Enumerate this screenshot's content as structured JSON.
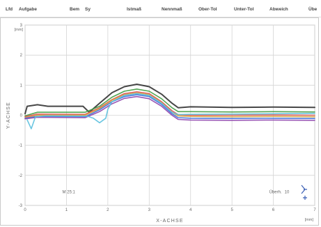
{
  "header": {
    "columns": [
      "Lfd",
      "Aufgabe",
      "Bem",
      "Sy",
      "Istmaß",
      "Nennmaß",
      "Ober-Tol",
      "Unter-Tol",
      "Abweich",
      "Übe"
    ]
  },
  "chart_data": {
    "type": "line",
    "xlabel": "X-ACHSE",
    "ylabel": "Y-ACHSE",
    "x_unit": "[mm]",
    "y_unit": "[mm]",
    "xlim": [
      0,
      7
    ],
    "ylim": [
      -3,
      3
    ],
    "x_ticks": [
      "0",
      "1",
      "2",
      "3",
      "4",
      "5",
      "6",
      "7"
    ],
    "y_ticks": [
      "-3",
      "-2",
      "-1",
      "0",
      "1",
      "2",
      "3"
    ],
    "scale_label": "M 25:1",
    "exaggeration_label": "Überh.",
    "exaggeration_value": "10",
    "series": [
      {
        "color": "#333333",
        "points": [
          [
            0,
            0.05
          ],
          [
            0.05,
            0.3
          ],
          [
            0.3,
            0.35
          ],
          [
            0.55,
            0.3
          ],
          [
            1.4,
            0.3
          ],
          [
            1.55,
            0.1
          ],
          [
            1.8,
            0.4
          ],
          [
            2.1,
            0.75
          ],
          [
            2.4,
            0.95
          ],
          [
            2.7,
            1.03
          ],
          [
            3.0,
            0.95
          ],
          [
            3.3,
            0.7
          ],
          [
            3.55,
            0.4
          ],
          [
            3.7,
            0.25
          ],
          [
            4.0,
            0.28
          ],
          [
            5.0,
            0.26
          ],
          [
            6.0,
            0.27
          ],
          [
            7.0,
            0.26
          ]
        ]
      },
      {
        "color": "#3f9a3f",
        "points": [
          [
            0,
            -0.02
          ],
          [
            0.3,
            0.1
          ],
          [
            1.45,
            0.1
          ],
          [
            1.8,
            0.3
          ],
          [
            2.1,
            0.6
          ],
          [
            2.4,
            0.8
          ],
          [
            2.7,
            0.87
          ],
          [
            3.0,
            0.8
          ],
          [
            3.3,
            0.55
          ],
          [
            3.55,
            0.25
          ],
          [
            3.7,
            0.12
          ],
          [
            4.0,
            0.12
          ],
          [
            5.0,
            0.11
          ],
          [
            6.0,
            0.12
          ],
          [
            7.0,
            0.11
          ]
        ]
      },
      {
        "color": "#d9534f",
        "points": [
          [
            0,
            -0.05
          ],
          [
            0.3,
            0.04
          ],
          [
            1.45,
            0.03
          ],
          [
            1.8,
            0.25
          ],
          [
            2.1,
            0.52
          ],
          [
            2.4,
            0.72
          ],
          [
            2.7,
            0.78
          ],
          [
            3.0,
            0.72
          ],
          [
            3.3,
            0.45
          ],
          [
            3.55,
            0.15
          ],
          [
            3.7,
            0.02
          ],
          [
            4.0,
            0.0
          ],
          [
            5.0,
            0.0
          ],
          [
            6.0,
            0.01
          ],
          [
            7.0,
            0.0
          ]
        ]
      },
      {
        "color": "#d9a23b",
        "points": [
          [
            0,
            -0.08
          ],
          [
            0.3,
            0.0
          ],
          [
            1.45,
            0.0
          ],
          [
            1.8,
            0.22
          ],
          [
            2.1,
            0.5
          ],
          [
            2.4,
            0.68
          ],
          [
            2.7,
            0.74
          ],
          [
            3.0,
            0.68
          ],
          [
            3.3,
            0.42
          ],
          [
            3.55,
            0.1
          ],
          [
            3.7,
            -0.02
          ],
          [
            4.0,
            -0.04
          ],
          [
            5.0,
            -0.05
          ],
          [
            6.0,
            -0.04
          ],
          [
            7.0,
            -0.05
          ]
        ]
      },
      {
        "color": "#3b6fd9",
        "points": [
          [
            0,
            -0.1
          ],
          [
            0.3,
            -0.04
          ],
          [
            1.45,
            -0.05
          ],
          [
            1.8,
            0.18
          ],
          [
            2.1,
            0.45
          ],
          [
            2.4,
            0.62
          ],
          [
            2.7,
            0.68
          ],
          [
            3.0,
            0.62
          ],
          [
            3.3,
            0.36
          ],
          [
            3.55,
            0.05
          ],
          [
            3.7,
            -0.08
          ],
          [
            4.0,
            -0.1
          ],
          [
            5.0,
            -0.11
          ],
          [
            6.0,
            -0.1
          ],
          [
            7.0,
            -0.11
          ]
        ]
      },
      {
        "color": "#8e44ad",
        "points": [
          [
            0,
            -0.12
          ],
          [
            0.3,
            -0.07
          ],
          [
            1.45,
            -0.08
          ],
          [
            1.8,
            0.12
          ],
          [
            2.1,
            0.38
          ],
          [
            2.4,
            0.56
          ],
          [
            2.7,
            0.62
          ],
          [
            3.0,
            0.55
          ],
          [
            3.3,
            0.3
          ],
          [
            3.55,
            0.0
          ],
          [
            3.7,
            -0.14
          ],
          [
            4.0,
            -0.16
          ],
          [
            5.0,
            -0.17
          ],
          [
            6.0,
            -0.16
          ],
          [
            7.0,
            -0.17
          ]
        ]
      },
      {
        "color": "#5bc0de",
        "points": [
          [
            0.05,
            -0.15
          ],
          [
            0.15,
            -0.45
          ],
          [
            0.25,
            -0.05
          ],
          [
            0.5,
            -0.02
          ],
          [
            1.5,
            -0.03
          ],
          [
            1.65,
            -0.1
          ],
          [
            1.8,
            -0.25
          ],
          [
            1.95,
            -0.1
          ],
          [
            2.0,
            0.2
          ],
          [
            2.1,
            0.45
          ],
          [
            2.4,
            0.66
          ],
          [
            2.7,
            0.72
          ],
          [
            3.0,
            0.66
          ],
          [
            3.3,
            0.4
          ],
          [
            3.55,
            0.1
          ],
          [
            3.7,
            0.02
          ],
          [
            4.0,
            0.03
          ],
          [
            5.0,
            0.04
          ],
          [
            6.0,
            0.05
          ],
          [
            7.0,
            0.06
          ]
        ]
      }
    ]
  }
}
